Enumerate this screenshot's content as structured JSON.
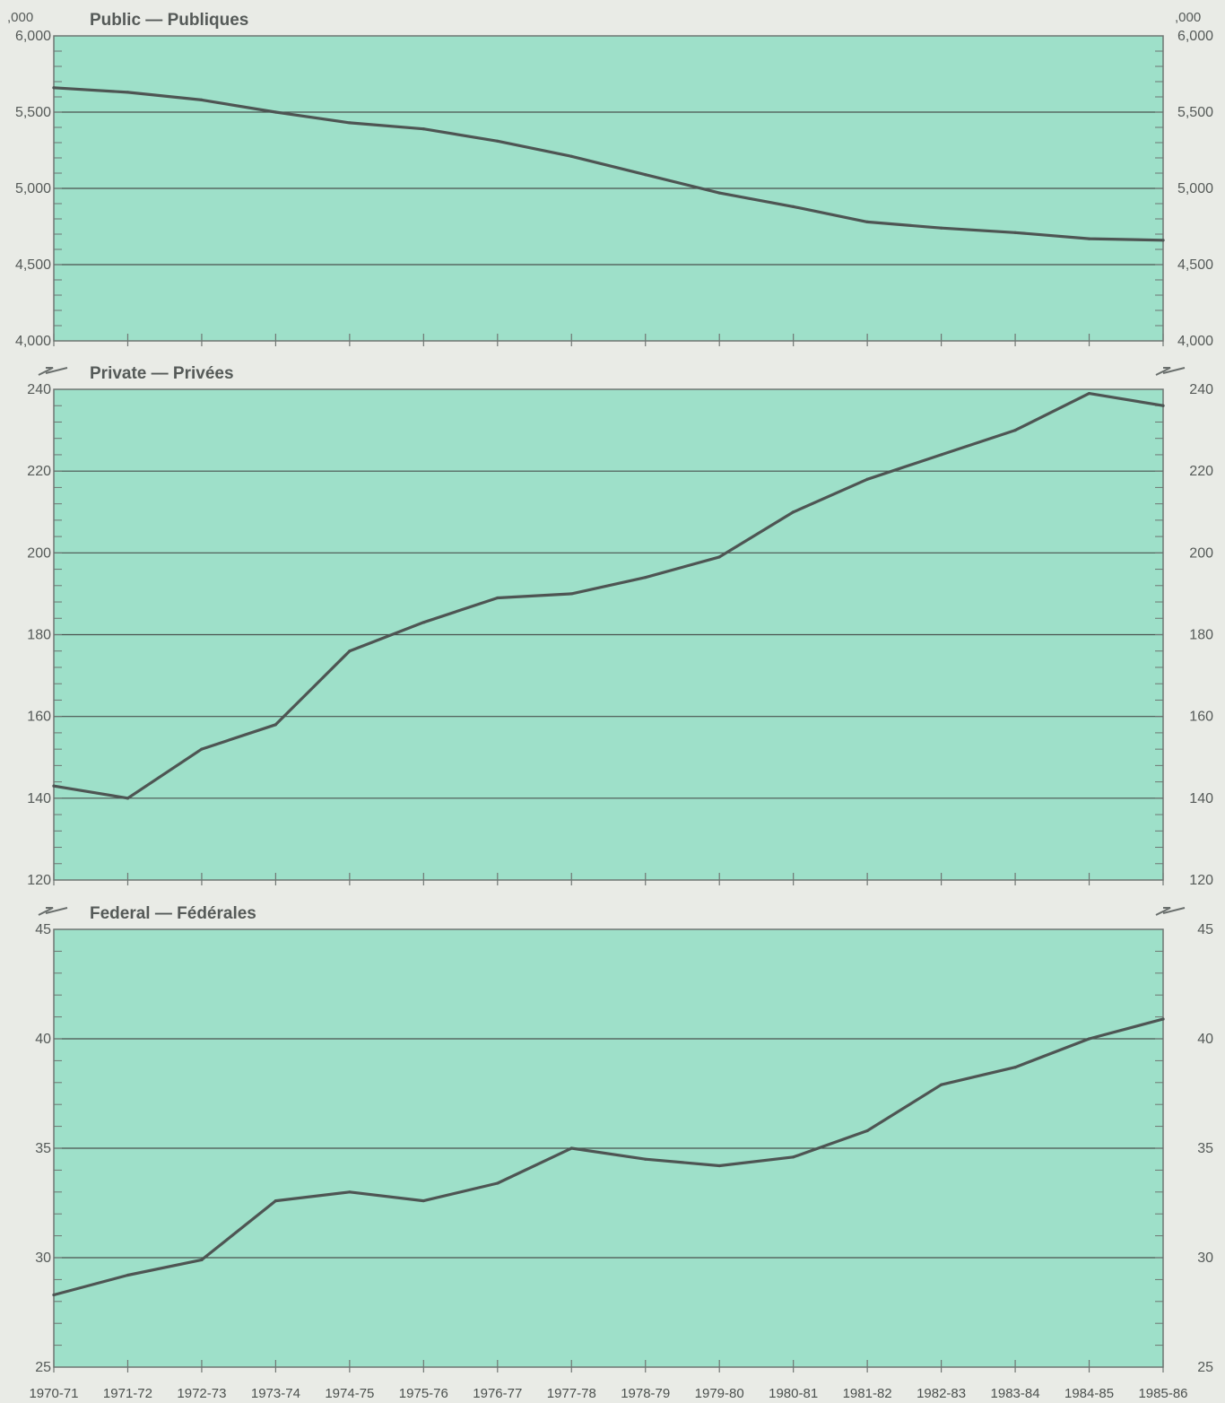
{
  "chart_data": {
    "type": "line",
    "unit_label": ",000",
    "categories": [
      "1970-71",
      "1971-72",
      "1972-73",
      "1973-74",
      "1974-75",
      "1975-76",
      "1976-77",
      "1977-78",
      "1978-79",
      "1979-80",
      "1980-81",
      "1981-82",
      "1982-83",
      "1983-84",
      "1984-85",
      "1985-86"
    ],
    "panels": [
      {
        "title": "Public — Publiques",
        "ylim": [
          4000,
          6000
        ],
        "gridlines": [
          4500,
          5000,
          5500
        ],
        "ticks": [
          4000,
          4500,
          5000,
          5500,
          6000
        ],
        "tick_labels": [
          "4,000",
          "4,500",
          "5,000",
          "5,500",
          "6,000"
        ],
        "values": [
          5660,
          5630,
          5580,
          5500,
          5430,
          5390,
          5310,
          5210,
          5090,
          4970,
          4880,
          4780,
          4740,
          4710,
          4670,
          4660
        ]
      },
      {
        "title": "Private — Privées",
        "ylim": [
          120,
          240
        ],
        "gridlines": [
          140,
          160,
          180,
          200,
          220
        ],
        "ticks": [
          120,
          140,
          160,
          180,
          200,
          220,
          240
        ],
        "tick_labels": [
          "120",
          "140",
          "160",
          "180",
          "200",
          "220",
          "240"
        ],
        "values": [
          143,
          140,
          152,
          158,
          176,
          183,
          189,
          190,
          194,
          199,
          210,
          218,
          224,
          230,
          239,
          236
        ]
      },
      {
        "title": "Federal — Fédérales",
        "ylim": [
          25,
          45
        ],
        "gridlines": [
          30,
          35,
          40
        ],
        "ticks": [
          25,
          30,
          35,
          40,
          45
        ],
        "tick_labels": [
          "25",
          "30",
          "35",
          "40",
          "45"
        ],
        "values": [
          28.3,
          29.2,
          29.9,
          32.6,
          33.0,
          32.6,
          33.4,
          35.0,
          34.5,
          34.2,
          34.6,
          35.8,
          37.9,
          38.7,
          40.0,
          40.9
        ]
      }
    ],
    "colors": {
      "plot_fill": "#9ee0c9",
      "line": "#4e5553",
      "grid": "#4a524f",
      "frame": "#6f7572",
      "page": "#e9ebe6"
    }
  }
}
